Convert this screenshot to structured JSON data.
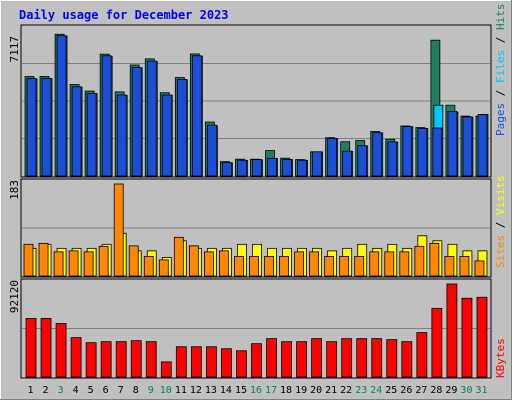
{
  "chart_data": [
    {
      "type": "bar",
      "title": "Daily usage for December 2023",
      "panel": "hits",
      "ymax_label": "7117",
      "ymax": 7117,
      "categories": [
        "1",
        "2",
        "3",
        "4",
        "5",
        "6",
        "7",
        "8",
        "9",
        "10",
        "11",
        "12",
        "13",
        "14",
        "15",
        "16",
        "17",
        "18",
        "19",
        "20",
        "21",
        "22",
        "23",
        "24",
        "25",
        "26",
        "27",
        "28",
        "29",
        "30",
        "31"
      ],
      "weekend_days": [
        "3",
        "9",
        "10",
        "16",
        "17",
        "23",
        "24",
        "30",
        "31"
      ],
      "series": [
        {
          "name": "Hits",
          "color": "#1e8060",
          "values": [
            4850,
            4850,
            6910,
            4460,
            4140,
            5940,
            4100,
            5410,
            5710,
            4060,
            4800,
            5950,
            2630,
            700,
            820,
            820,
            1240,
            870,
            800,
            1180,
            1870,
            1670,
            1730,
            2170,
            1790,
            2440,
            2360,
            6620,
            3450,
            2920,
            2920
          ]
        },
        {
          "name": "Files",
          "color": "#00c8ff",
          "values": [
            4730,
            4740,
            6820,
            4330,
            4010,
            5840,
            3930,
            5270,
            5580,
            3940,
            4690,
            5840,
            2450,
            640,
            760,
            790,
            850,
            800,
            760,
            1170,
            1820,
            1200,
            1460,
            2100,
            1650,
            2400,
            2310,
            3450,
            3100,
            2870,
            3000
          ]
        },
        {
          "name": "Pages",
          "color": "#1e4dd8",
          "values": [
            4750,
            4760,
            6840,
            4350,
            4030,
            5860,
            3950,
            5290,
            5600,
            3950,
            4710,
            5860,
            2480,
            650,
            770,
            800,
            860,
            810,
            770,
            1180,
            1830,
            1210,
            1480,
            2110,
            1660,
            2410,
            2320,
            2340,
            3150,
            2880,
            2990
          ]
        }
      ],
      "legend": [
        "Pages",
        "Files",
        "Hits"
      ]
    },
    {
      "type": "bar",
      "panel": "visits",
      "ymax_label": "183",
      "ymax": 183,
      "series": [
        {
          "name": "Visits",
          "color": "#ffff00",
          "values": [
            55,
            63,
            55,
            55,
            55,
            63,
            85,
            50,
            50,
            37,
            70,
            55,
            55,
            55,
            63,
            63,
            55,
            55,
            55,
            55,
            50,
            55,
            63,
            55,
            63,
            55,
            80,
            70,
            63,
            50,
            50
          ]
        },
        {
          "name": "Sites",
          "color": "#ff8800",
          "values": [
            63,
            65,
            48,
            50,
            48,
            59,
            183,
            60,
            39,
            32,
            77,
            60,
            48,
            50,
            39,
            39,
            39,
            39,
            48,
            48,
            39,
            39,
            39,
            48,
            48,
            48,
            59,
            65,
            39,
            39,
            30
          ]
        }
      ],
      "legend": [
        "Sites",
        "Visits"
      ]
    },
    {
      "type": "bar",
      "panel": "kbytes",
      "ymax_label": "92120",
      "ymax": 92120,
      "series": [
        {
          "name": "KBytes",
          "color": "#ff0000",
          "values": [
            58000,
            58000,
            53000,
            39000,
            34000,
            35000,
            35000,
            36000,
            35000,
            15000,
            30000,
            30000,
            30000,
            28000,
            26000,
            33000,
            38000,
            35000,
            35000,
            38000,
            35000,
            38000,
            38000,
            38000,
            37000,
            35000,
            44000,
            68000,
            92120,
            78000,
            79000
          ]
        }
      ],
      "legend": [
        "KBytes"
      ]
    }
  ],
  "colors": {
    "background": "#C0C0C0",
    "plot": "#C0C0C0",
    "title": "#0000FF",
    "weekday_label": "#000000",
    "weekend_label": "#00805C",
    "gridline": "#808080"
  }
}
